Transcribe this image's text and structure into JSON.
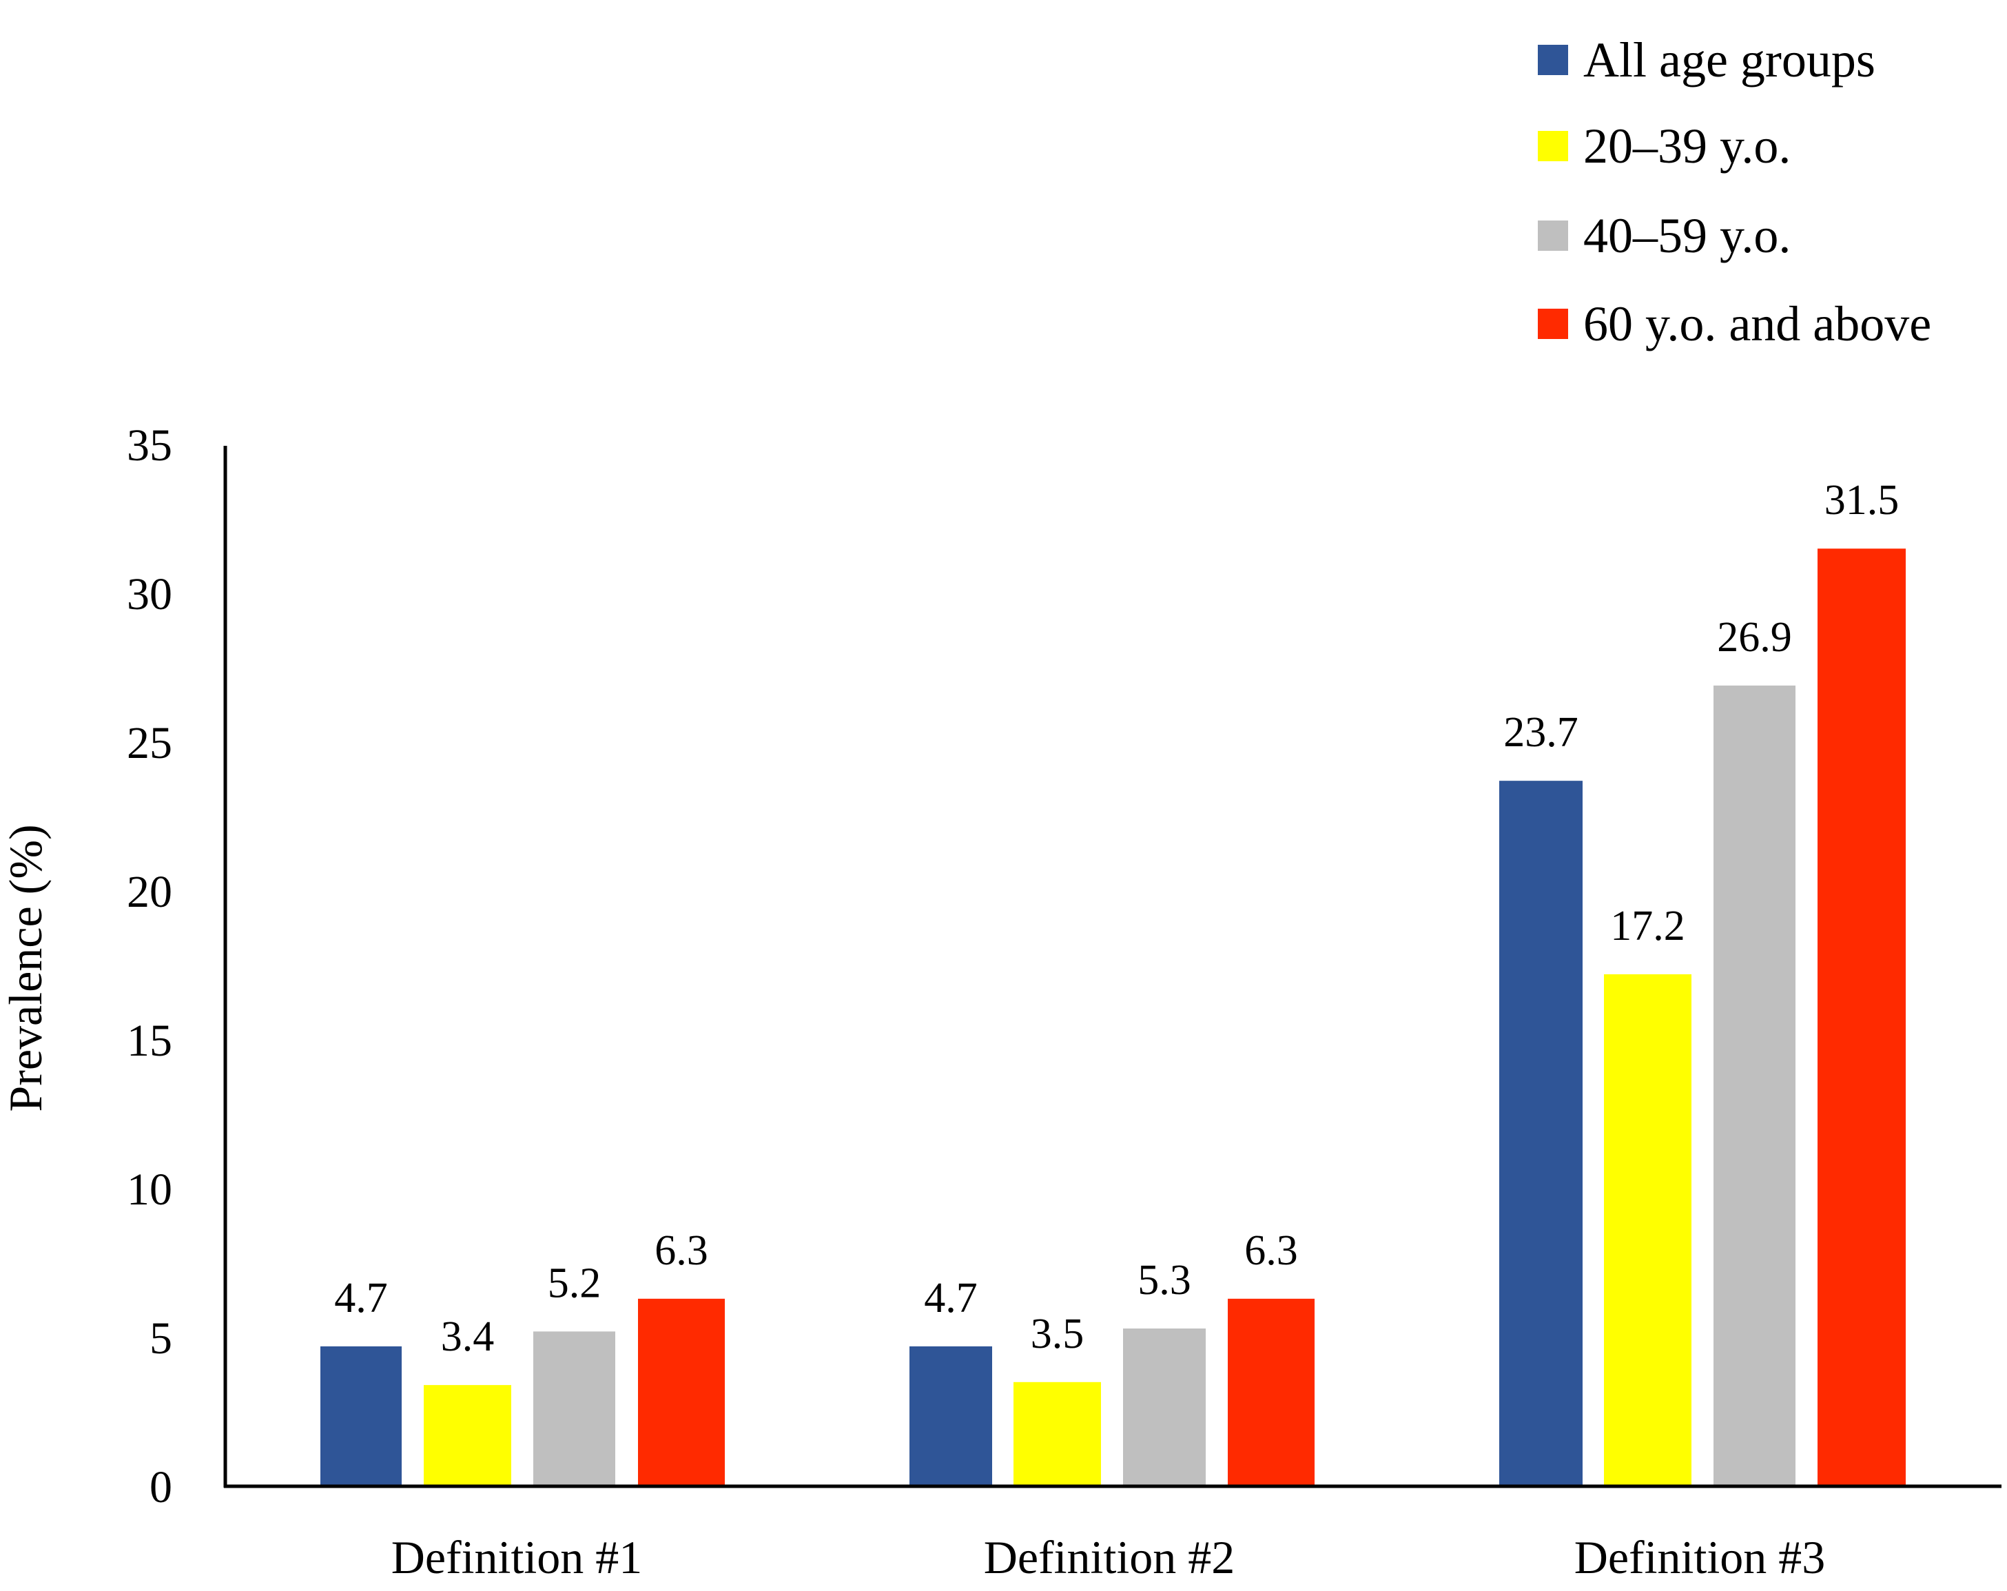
{
  "chart_data": {
    "type": "bar",
    "title": "",
    "xlabel": "",
    "ylabel": "Prevalence (%)",
    "ylim": [
      0,
      35
    ],
    "yticks": [
      0,
      5,
      10,
      15,
      20,
      25,
      30,
      35
    ],
    "grid": false,
    "legend_position": "top-right",
    "categories": [
      "Definition #1",
      "Definition #2",
      "Definition #3"
    ],
    "series": [
      {
        "name": "All age groups",
        "color": "#2F5597",
        "values": [
          4.7,
          4.7,
          23.7
        ],
        "labels": [
          "4.7",
          "4.7",
          "23.7"
        ]
      },
      {
        "name": "20–39 y.o.",
        "color": "#FFFF00",
        "values": [
          3.4,
          3.5,
          17.2
        ],
        "labels": [
          "3.4",
          "3.5",
          "17.2"
        ]
      },
      {
        "name": "40–59 y.o.",
        "color": "#BFBFBF",
        "values": [
          5.2,
          5.3,
          26.9
        ],
        "labels": [
          "5.2",
          "5.3",
          "26.9"
        ]
      },
      {
        "name": "60 y.o. and above",
        "color": "#FF2A00",
        "values": [
          6.3,
          6.3,
          31.5
        ],
        "labels": [
          "6.3",
          "6.3",
          "31.5"
        ]
      }
    ]
  }
}
